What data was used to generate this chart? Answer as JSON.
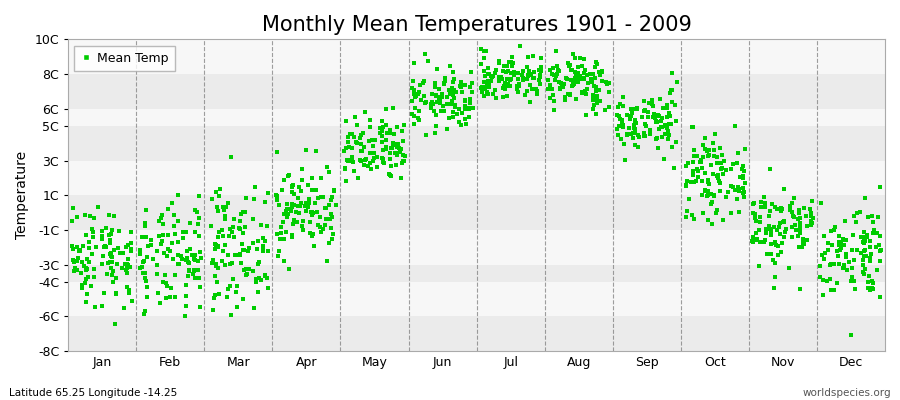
{
  "title": "Monthly Mean Temperatures 1901 - 2009",
  "ylabel": "Temperature",
  "bottom_left_text": "Latitude 65.25 Longitude -14.25",
  "bottom_right_text": "worldspecies.org",
  "legend_label": "Mean Temp",
  "marker_color": "#00CC00",
  "marker_size": 5,
  "ylim": [
    -8,
    10
  ],
  "yticks": [
    -8,
    -6,
    -4,
    -3,
    -1,
    1,
    3,
    5,
    6,
    8,
    10
  ],
  "ytick_labels": [
    "-8C",
    "-6C",
    "-4C",
    "-3C",
    "-1C",
    "1C",
    "3C",
    "5C",
    "6C",
    "8C",
    "10C"
  ],
  "months": [
    "Jan",
    "Feb",
    "Mar",
    "Apr",
    "May",
    "Jun",
    "Jul",
    "Aug",
    "Sep",
    "Oct",
    "Nov",
    "Dec"
  ],
  "band_color_even": "#EBEBEB",
  "band_color_odd": "#F7F7F7",
  "title_fontsize": 15,
  "axis_fontsize": 10,
  "tick_fontsize": 9,
  "grid_color": "#777777",
  "background_color": "#FFFFFF",
  "monthly_means": [
    -2.5,
    -2.8,
    -2.0,
    0.2,
    3.5,
    6.5,
    7.8,
    7.5,
    5.2,
    2.0,
    -0.8,
    -2.2
  ],
  "monthly_stds": [
    1.5,
    1.6,
    1.7,
    1.3,
    1.0,
    0.9,
    0.7,
    0.8,
    0.9,
    1.1,
    1.2,
    1.4
  ],
  "n_years": 109,
  "seed": 42
}
